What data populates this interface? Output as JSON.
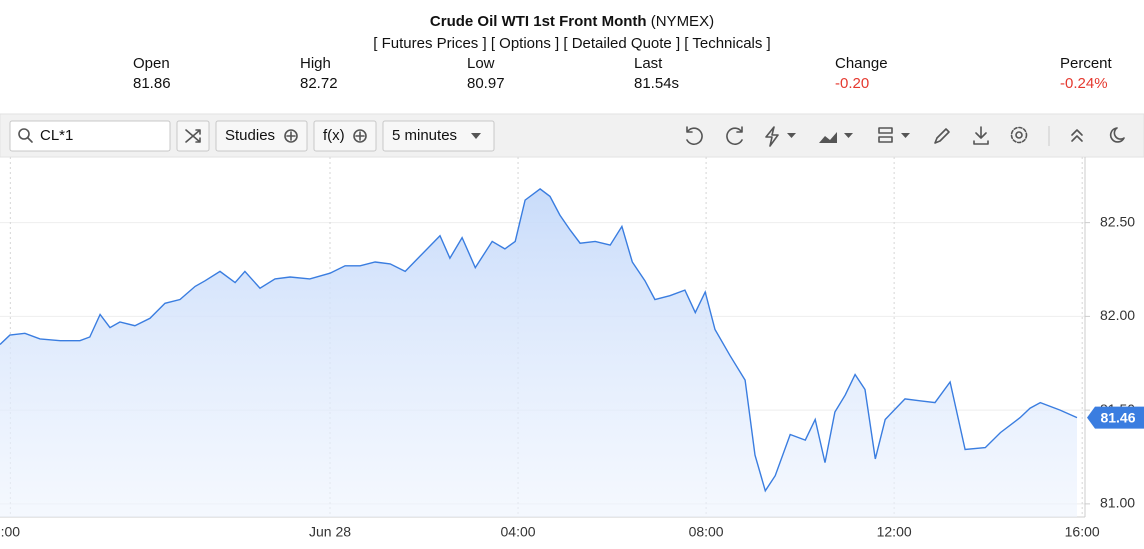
{
  "header": {
    "title": "Crude Oil WTI 1st Front Month",
    "exchange": "(NYMEX)",
    "links": [
      "[ Futures Prices ]",
      "[ Options ]",
      "[ Detailed Quote ]",
      "[ Technicals ]"
    ],
    "quote": {
      "labels": [
        "Open",
        "High",
        "Low",
        "Last",
        "Change",
        "Percent"
      ],
      "values": [
        "81.86",
        "82.72",
        "80.97",
        "81.54s",
        "-0.20",
        "-0.24%"
      ]
    }
  },
  "toolbar": {
    "symbol": "CL*1",
    "studies": "Studies",
    "function": "f(x)",
    "interval": "5 minutes"
  },
  "chart_data": {
    "type": "area",
    "color": "#3a7de0",
    "x": [
      -7.02,
      -6.81,
      -6.49,
      -6.17,
      -5.74,
      -5.32,
      -5.11,
      -4.89,
      -4.68,
      -4.47,
      -4.15,
      -3.83,
      -3.51,
      -3.19,
      -2.87,
      -2.66,
      -2.34,
      -2.02,
      -1.81,
      -1.49,
      -1.17,
      -0.85,
      -0.43,
      0,
      0.32,
      0.64,
      0.96,
      1.28,
      1.6,
      1.91,
      2.34,
      2.55,
      2.81,
      3.09,
      3.45,
      3.72,
      3.94,
      4.15,
      4.47,
      4.68,
      4.89,
      5.11,
      5.32,
      5.64,
      5.96,
      6.21,
      6.43,
      6.7,
      6.91,
      7.23,
      7.55,
      7.77,
      7.98,
      8.19,
      8.51,
      8.83,
      9.04,
      9.26,
      9.47,
      9.79,
      10.11,
      10.32,
      10.53,
      10.74,
      10.96,
      11.17,
      11.38,
      11.6,
      11.81,
      12.23,
      12.55,
      12.87,
      13.19,
      13.51,
      13.94,
      14.26,
      14.68,
      14.89,
      15.11,
      15.53,
      15.89
    ],
    "values": [
      81.85,
      81.9,
      81.91,
      81.88,
      81.87,
      81.87,
      81.89,
      82.01,
      81.94,
      81.97,
      81.95,
      81.99,
      82.07,
      82.09,
      82.16,
      82.19,
      82.24,
      82.18,
      82.24,
      82.15,
      82.2,
      82.21,
      82.2,
      82.23,
      82.27,
      82.27,
      82.29,
      82.28,
      82.24,
      82.32,
      82.43,
      82.31,
      82.42,
      82.26,
      82.4,
      82.36,
      82.4,
      82.62,
      82.68,
      82.64,
      82.54,
      82.46,
      82.39,
      82.4,
      82.38,
      82.48,
      82.29,
      82.19,
      82.09,
      82.11,
      82.14,
      82.02,
      82.13,
      81.93,
      81.79,
      81.66,
      81.26,
      81.07,
      81.15,
      81.37,
      81.34,
      81.45,
      81.22,
      81.49,
      81.58,
      81.69,
      81.61,
      81.24,
      81.45,
      81.56,
      81.55,
      81.54,
      81.65,
      81.29,
      81.3,
      81.38,
      81.46,
      81.51,
      81.54,
      81.5,
      81.46
    ],
    "current_label": "81.46",
    "xlim": [
      -7.02,
      16.06
    ],
    "ylim": [
      80.93,
      82.85
    ],
    "xticks": [
      {
        "value": -6.8,
        "label": ":00"
      },
      {
        "value": 0,
        "label": "Jun 28"
      },
      {
        "value": 4,
        "label": "04:00"
      },
      {
        "value": 8,
        "label": "08:00"
      },
      {
        "value": 12,
        "label": "12:00"
      },
      {
        "value": 16,
        "label": "16:00"
      }
    ],
    "yticks": [
      {
        "value": 81,
        "label": "81.00"
      },
      {
        "value": 81.5,
        "label": "81.50"
      },
      {
        "value": 82,
        "label": "82.00"
      },
      {
        "value": 82.5,
        "label": "82.50"
      }
    ],
    "grid": true
  }
}
